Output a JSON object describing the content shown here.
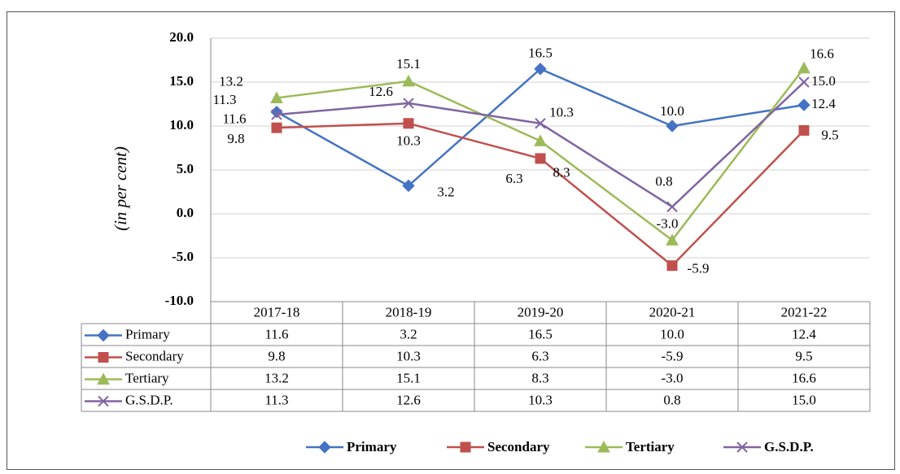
{
  "chart_data": {
    "type": "line",
    "y_label": "(in per cent)",
    "categories": [
      "2017-18",
      "2018-19",
      "2019-20",
      "2020-21",
      "2021-22"
    ],
    "series": [
      {
        "name": "Primary",
        "color": "#4472c4",
        "marker": "diamond",
        "values": [
          11.6,
          3.2,
          16.5,
          10.0,
          12.4
        ],
        "value_labels": [
          "11.6",
          "3.2",
          "16.5",
          "10.0",
          "12.4"
        ]
      },
      {
        "name": "Secondary",
        "color": "#c0504d",
        "marker": "square",
        "values": [
          9.8,
          10.3,
          6.3,
          -5.9,
          9.5
        ],
        "value_labels": [
          "9.8",
          "10.3",
          "6.3",
          "-5.9",
          "9.5"
        ]
      },
      {
        "name": "Tertiary",
        "color": "#9bbb59",
        "marker": "triangle",
        "values": [
          13.2,
          15.1,
          8.3,
          -3.0,
          16.6
        ],
        "value_labels": [
          "13.2",
          "15.1",
          "8.3",
          "-3.0",
          "16.6"
        ]
      },
      {
        "name": "G.S.D.P.",
        "color": "#8064a2",
        "marker": "x",
        "values": [
          11.3,
          12.6,
          10.3,
          0.8,
          15.0
        ],
        "value_labels": [
          "11.3",
          "12.6",
          "10.3",
          "0.8",
          "15.0"
        ]
      }
    ],
    "ylim": [
      -10,
      20
    ],
    "yticks": [
      {
        "value": -10,
        "label": "-10.0"
      },
      {
        "value": -5,
        "label": "-5.0"
      },
      {
        "value": 0,
        "label": "0.0"
      },
      {
        "value": 5,
        "label": "5.0"
      },
      {
        "value": 10,
        "label": "10.0"
      },
      {
        "value": 15,
        "label": "15.0"
      },
      {
        "value": 20,
        "label": "20.0"
      }
    ],
    "grid": true,
    "data_table": true,
    "legend": "bottom"
  }
}
